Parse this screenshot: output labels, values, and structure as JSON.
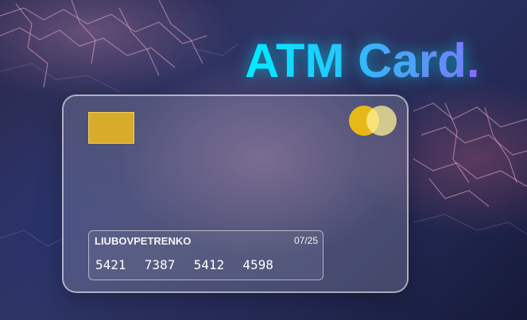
{
  "title": "ATM Card.",
  "card": {
    "holder_name": "LIUBOVPETRENKO",
    "expiry": "07/25",
    "number": "5421  7387  5412  4598"
  },
  "icons": {
    "chip": "chip-icon",
    "network_logo": "mastercard-logo-icon"
  },
  "colors": {
    "title_gradient_start": "#00f0ff",
    "title_gradient_end": "#9a5cff",
    "chip": "#d9ab2a",
    "logo_left": "#f0be14",
    "logo_right": "#fff096"
  }
}
